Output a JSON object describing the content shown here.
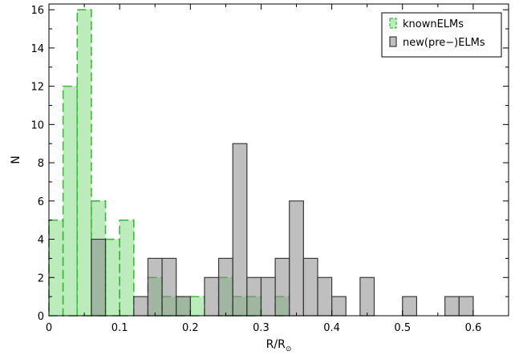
{
  "chart_data": {
    "type": "bar",
    "subtype": "overlapping-histogram",
    "title": "",
    "xlabel": "R/R",
    "xlabel_symbol": "⊙",
    "ylabel": "N",
    "xlim": [
      0,
      0.65
    ],
    "ylim": [
      0,
      16.3
    ],
    "xticks": [
      0,
      0.1,
      0.2,
      0.3,
      0.4,
      0.5,
      0.6
    ],
    "xtick_labels": [
      "0",
      "0.1",
      "0.2",
      "0.3",
      "0.4",
      "0.5",
      "0.6"
    ],
    "yticks": [
      0,
      2,
      4,
      6,
      8,
      10,
      12,
      14,
      16
    ],
    "ytick_labels": [
      "0",
      "2",
      "4",
      "6",
      "8",
      "10",
      "12",
      "14",
      "16"
    ],
    "bin_edges": [
      0,
      0.02,
      0.04,
      0.06,
      0.08,
      0.1,
      0.12,
      0.14,
      0.16,
      0.18,
      0.2,
      0.22,
      0.24,
      0.26,
      0.28,
      0.3,
      0.32,
      0.34,
      0.36,
      0.38,
      0.4,
      0.42,
      0.44,
      0.46,
      0.48,
      0.5,
      0.52,
      0.54,
      0.56,
      0.58,
      0.6,
      0.62
    ],
    "grid": false,
    "legend_position": "top-right",
    "series": [
      {
        "name": "knownELMs",
        "color": "#90e090",
        "edge_color": "#3cb83c",
        "line_style": "dashed",
        "values": [
          5,
          12,
          16,
          6,
          4,
          5,
          0,
          2,
          1,
          1,
          1,
          0,
          2,
          1,
          1,
          0,
          1,
          0,
          0,
          0,
          0,
          0,
          0,
          0,
          0,
          0,
          0,
          0,
          0,
          0,
          0
        ]
      },
      {
        "name": "new(pre−)ELMs",
        "color": "#8a8a8a",
        "edge_color": "#3a3a3a",
        "line_style": "solid",
        "values": [
          0,
          0,
          0,
          4,
          0,
          0,
          1,
          3,
          3,
          1,
          0,
          2,
          3,
          9,
          2,
          2,
          3,
          6,
          3,
          2,
          1,
          0,
          2,
          0,
          0,
          1,
          0,
          0,
          1,
          1,
          0
        ]
      }
    ]
  }
}
